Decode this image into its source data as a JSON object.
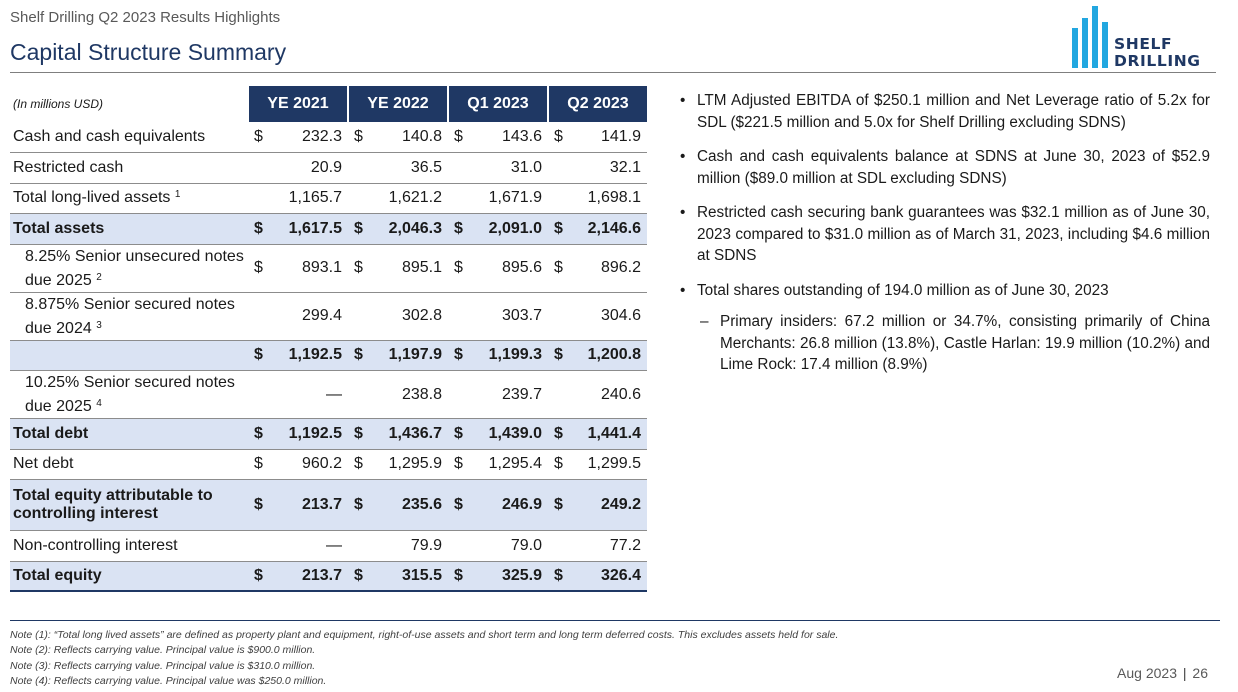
{
  "header": {
    "subtitle": "Shelf Drilling Q2 2023 Results Highlights",
    "title": "Capital Structure Summary",
    "logo_line1": "SHELF",
    "logo_line2": "DRILLING",
    "brand_colors": {
      "navy": "#1f3864",
      "cyan": "#22a7e0",
      "highlight": "#dae3f3"
    }
  },
  "table": {
    "unit": "(In millions USD)",
    "columns": [
      "YE 2021",
      "YE 2022",
      "Q1 2023",
      "Q2 2023"
    ],
    "rows": [
      {
        "label": "Cash and cash equivalents",
        "sup": "",
        "cells": [
          [
            "$",
            "232.3"
          ],
          [
            "$",
            "140.8"
          ],
          [
            "$",
            "143.6"
          ],
          [
            "$",
            "141.9"
          ]
        ]
      },
      {
        "label": "Restricted cash",
        "sup": "",
        "cells": [
          [
            "",
            "20.9"
          ],
          [
            "",
            "36.5"
          ],
          [
            "",
            "31.0"
          ],
          [
            "",
            "32.1"
          ]
        ]
      },
      {
        "label": "Total long-lived assets",
        "sup": "1",
        "cells": [
          [
            "",
            "1,165.7"
          ],
          [
            "",
            "1,621.2"
          ],
          [
            "",
            "1,671.9"
          ],
          [
            "",
            "1,698.1"
          ]
        ]
      },
      {
        "label": "Total assets",
        "sup": "",
        "cells": [
          [
            "$",
            "1,617.5"
          ],
          [
            "$",
            "2,046.3"
          ],
          [
            "$",
            "2,091.0"
          ],
          [
            "$",
            "2,146.6"
          ]
        ]
      },
      {
        "label": "8.25% Senior unsecured notes due 2025",
        "sup": "2",
        "cells": [
          [
            "$",
            "893.1"
          ],
          [
            "$",
            "895.1"
          ],
          [
            "$",
            "895.6"
          ],
          [
            "$",
            "896.2"
          ]
        ]
      },
      {
        "label": "8.875% Senior secured notes due 2024",
        "sup": "3",
        "cells": [
          [
            "",
            "299.4"
          ],
          [
            "",
            "302.8"
          ],
          [
            "",
            "303.7"
          ],
          [
            "",
            "304.6"
          ]
        ]
      },
      {
        "label": "",
        "sup": "",
        "cells": [
          [
            "$",
            "1,192.5"
          ],
          [
            "$",
            "1,197.9"
          ],
          [
            "$",
            "1,199.3"
          ],
          [
            "$",
            "1,200.8"
          ]
        ]
      },
      {
        "label": "10.25% Senior secured notes due 2025",
        "sup": "4",
        "cells": [
          [
            "",
            "—"
          ],
          [
            "",
            "238.8"
          ],
          [
            "",
            "239.7"
          ],
          [
            "",
            "240.6"
          ]
        ]
      },
      {
        "label": "Total debt",
        "sup": "",
        "cells": [
          [
            "$",
            "1,192.5"
          ],
          [
            "$",
            "1,436.7"
          ],
          [
            "$",
            "1,439.0"
          ],
          [
            "$",
            "1,441.4"
          ]
        ]
      },
      {
        "label": "Net debt",
        "sup": "",
        "cells": [
          [
            "$",
            "960.2"
          ],
          [
            "$",
            "1,295.9"
          ],
          [
            "$",
            "1,295.4"
          ],
          [
            "$",
            "1,299.5"
          ]
        ]
      },
      {
        "label": "Total equity attributable to controlling interest",
        "sup": "",
        "cells": [
          [
            "$",
            "213.7"
          ],
          [
            "$",
            "235.6"
          ],
          [
            "$",
            "246.9"
          ],
          [
            "$",
            "249.2"
          ]
        ]
      },
      {
        "label": "Non-controlling interest",
        "sup": "",
        "cells": [
          [
            "",
            "—"
          ],
          [
            "",
            "79.9"
          ],
          [
            "",
            "79.0"
          ],
          [
            "",
            "77.2"
          ]
        ]
      },
      {
        "label": "Total equity",
        "sup": "",
        "cells": [
          [
            "$",
            "213.7"
          ],
          [
            "$",
            "315.5"
          ],
          [
            "$",
            "325.9"
          ],
          [
            "$",
            "326.4"
          ]
        ]
      }
    ]
  },
  "bullets": [
    "LTM Adjusted EBITDA of $250.1 million and Net Leverage ratio of 5.2x for SDL ($221.5 million and 5.0x for Shelf Drilling excluding SDNS)",
    "Cash and cash equivalents balance at SDNS at June 30, 2023 of $52.9 million ($89.0 million at SDL excluding SDNS)",
    "Restricted cash securing bank guarantees was $32.1 million as of June 30, 2023 compared to $31.0 million as of March 31, 2023, including $4.6 million at SDNS",
    "Total shares outstanding of 194.0 million as of June 30, 2023"
  ],
  "sub_bullet": "Primary insiders: 67.2 million or 34.7%, consisting primarily of China Merchants: 26.8 million (13.8%), Castle Harlan: 19.9 million (10.2%) and Lime Rock: 17.4 million (8.9%)",
  "notes": [
    "Note (1): “Total long lived assets” are defined as property plant and equipment, right-of-use assets and short term and long term deferred costs. This excludes assets held for sale.",
    "Note (2): Reflects carrying value. Principal value is $900.0 million.",
    "Note (3): Reflects carrying value. Principal value is $310.0 million.",
    "Note (4): Reflects carrying value. Principal value was $250.0 million."
  ],
  "footer": {
    "date": "Aug 2023",
    "separator": "|",
    "page": "26"
  }
}
